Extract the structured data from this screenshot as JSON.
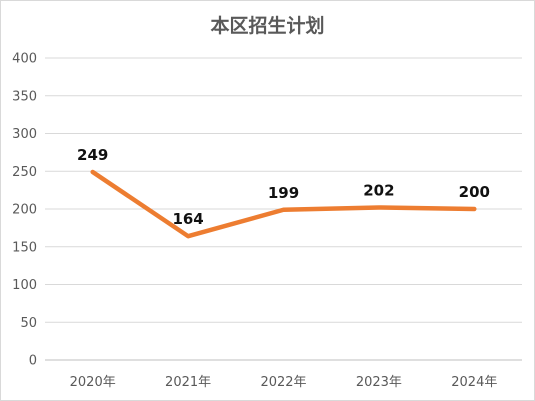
{
  "chart_data": {
    "type": "line",
    "title": "本区招生计划",
    "categories": [
      "2020年",
      "2021年",
      "2022年",
      "2023年",
      "2024年"
    ],
    "series": [
      {
        "values": [
          249,
          164,
          199,
          202,
          200
        ],
        "color": "#ED7D31"
      }
    ],
    "ylim": [
      0,
      400
    ],
    "yticks": [
      "0",
      "50",
      "100",
      "150",
      "200",
      "250",
      "300",
      "350",
      "400"
    ],
    "grid": true,
    "data_labels": true,
    "legend": "none"
  }
}
